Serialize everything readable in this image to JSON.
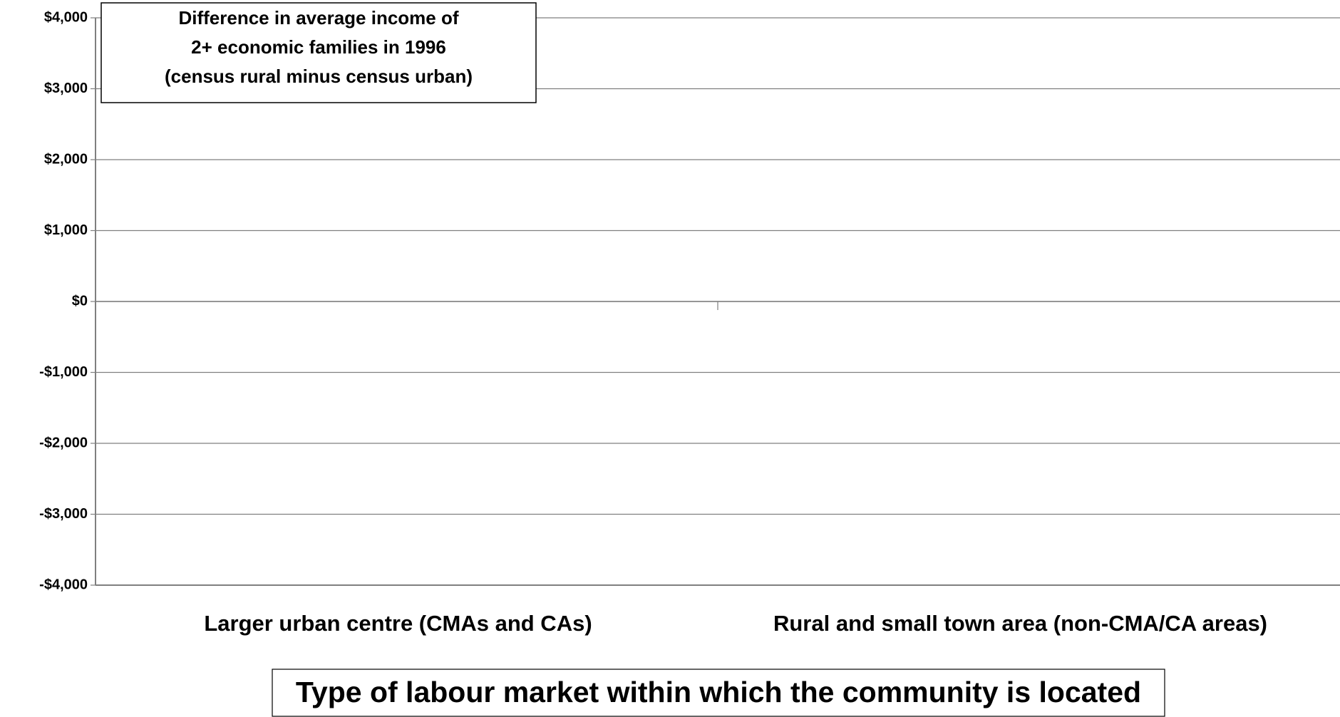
{
  "chart_data": {
    "type": "bar",
    "title": [
      "Difference in average income of",
      "2+ economic families in 1996",
      "(census rural minus census urban)"
    ],
    "x_label": "Type of labour market within which the community is located",
    "categories": [
      "Larger urban centre (CMAs and CAs)",
      "Rural and small town area (non-CMA/CA areas)"
    ],
    "ylim": [
      -4000,
      4000
    ],
    "yticks": [
      {
        "value": -4000,
        "label": "-$4,000"
      },
      {
        "value": -3000,
        "label": "-$3,000"
      },
      {
        "value": -2000,
        "label": "-$2,000"
      },
      {
        "value": -1000,
        "label": "-$1,000"
      },
      {
        "value": 0,
        "label": "$0"
      },
      {
        "value": 1000,
        "label": "$1,000"
      },
      {
        "value": 2000,
        "label": "$2,000"
      },
      {
        "value": 3000,
        "label": "$3,000"
      },
      {
        "value": 4000,
        "label": "$4,000"
      }
    ],
    "grid": true
  }
}
